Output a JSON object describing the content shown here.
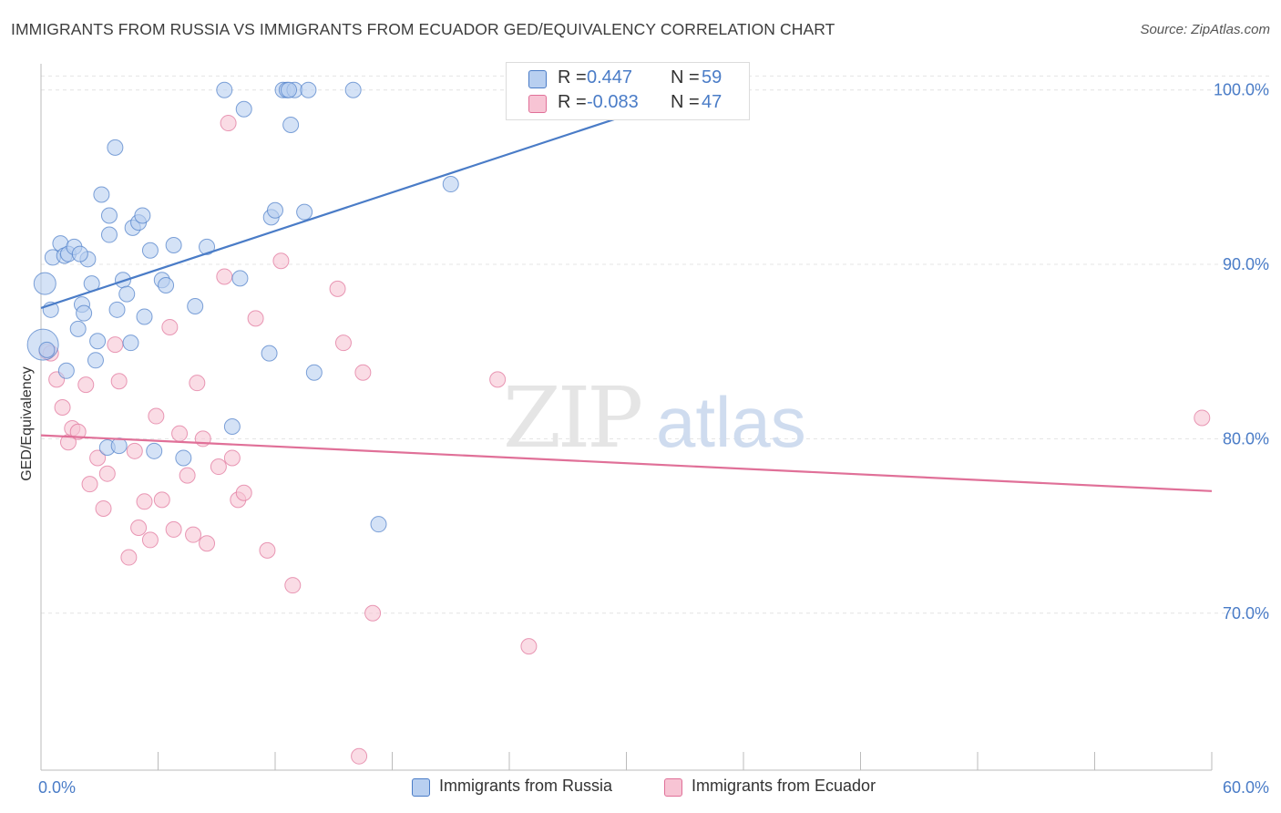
{
  "title": "IMMIGRANTS FROM RUSSIA VS IMMIGRANTS FROM ECUADOR GED/EQUIVALENCY CORRELATION CHART",
  "source": "Source: ZipAtlas.com",
  "watermark": {
    "zip": "ZIP",
    "atlas": "atlas"
  },
  "colors": {
    "russia": "#4a7cc7",
    "russia_fill": "#b8cff0",
    "ecuador": "#e07098",
    "ecuador_fill": "#f7c4d4"
  },
  "legend": {
    "russia": {
      "r_label": "R =",
      "r_value": "0.447",
      "n_label": "N =",
      "n_value": "59"
    },
    "ecuador": {
      "r_label": "R =",
      "r_value": "-0.083",
      "n_label": "N =",
      "n_value": "47"
    }
  },
  "bottom_legend": {
    "russia": "Immigrants from Russia",
    "ecuador": "Immigrants from Ecuador"
  },
  "chart_data": {
    "type": "scatter",
    "title": "IMMIGRANTS FROM RUSSIA VS IMMIGRANTS FROM ECUADOR GED/EQUIVALENCY CORRELATION CHART",
    "xlabel": "",
    "ylabel": "GED/Equivalency",
    "xlim": [
      0,
      60
    ],
    "ylim": [
      61,
      101.5
    ],
    "x_tick_labels": [
      "0.0%",
      "60.0%"
    ],
    "y_ticks": [
      70,
      80,
      90,
      100
    ],
    "y_tick_labels": [
      "70.0%",
      "80.0%",
      "90.0%",
      "100.0%"
    ],
    "grid": true,
    "legend_position": "top-center",
    "series": [
      {
        "name": "Immigrants from Russia",
        "color": "#4a7cc7",
        "trend": {
          "x": [
            0,
            34.5
          ],
          "y": [
            87.5,
            100.2
          ]
        },
        "points": [
          [
            0.1,
            85.4
          ],
          [
            0.2,
            88.9
          ],
          [
            0.5,
            87.4
          ],
          [
            0.6,
            90.4
          ],
          [
            1.0,
            91.2
          ],
          [
            1.2,
            90.5
          ],
          [
            1.4,
            90.6
          ],
          [
            1.7,
            91.0
          ],
          [
            1.9,
            86.3
          ],
          [
            2.1,
            87.7
          ],
          [
            2.2,
            87.2
          ],
          [
            2.4,
            90.3
          ],
          [
            2.6,
            88.9
          ],
          [
            2.8,
            84.5
          ],
          [
            2.9,
            85.6
          ],
          [
            3.1,
            94.0
          ],
          [
            3.4,
            79.5
          ],
          [
            3.5,
            92.8
          ],
          [
            3.5,
            91.7
          ],
          [
            3.8,
            96.7
          ],
          [
            3.9,
            87.4
          ],
          [
            4.0,
            79.6
          ],
          [
            4.2,
            89.1
          ],
          [
            4.4,
            88.3
          ],
          [
            4.6,
            85.5
          ],
          [
            4.7,
            92.1
          ],
          [
            5.0,
            92.4
          ],
          [
            5.2,
            92.8
          ],
          [
            5.3,
            87.0
          ],
          [
            5.6,
            90.8
          ],
          [
            5.8,
            79.3
          ],
          [
            6.2,
            89.1
          ],
          [
            6.4,
            88.8
          ],
          [
            6.8,
            91.1
          ],
          [
            7.3,
            78.9
          ],
          [
            7.9,
            87.6
          ],
          [
            8.5,
            91.0
          ],
          [
            9.4,
            100.0
          ],
          [
            9.8,
            80.7
          ],
          [
            10.2,
            89.2
          ],
          [
            10.4,
            98.9
          ],
          [
            11.7,
            84.9
          ],
          [
            11.8,
            92.7
          ],
          [
            12.0,
            93.1
          ],
          [
            12.4,
            100.0
          ],
          [
            12.6,
            100.0
          ],
          [
            12.8,
            98.0
          ],
          [
            13.0,
            100.0
          ],
          [
            13.5,
            93.0
          ],
          [
            13.7,
            100.0
          ],
          [
            14.0,
            83.8
          ],
          [
            16.0,
            100.0
          ],
          [
            17.3,
            75.1
          ],
          [
            21.0,
            94.6
          ],
          [
            34.0,
            100.0
          ],
          [
            0.3,
            85.1
          ],
          [
            1.3,
            83.9
          ],
          [
            2.0,
            90.6
          ],
          [
            12.7,
            100.0
          ]
        ]
      },
      {
        "name": "Immigrants from Ecuador",
        "color": "#e07098",
        "trend": {
          "x": [
            0,
            60
          ],
          "y": [
            80.2,
            77.0
          ]
        },
        "points": [
          [
            0.3,
            85.0
          ],
          [
            0.8,
            83.4
          ],
          [
            1.1,
            81.8
          ],
          [
            1.4,
            79.8
          ],
          [
            1.6,
            80.6
          ],
          [
            1.9,
            80.4
          ],
          [
            2.3,
            83.1
          ],
          [
            2.5,
            77.4
          ],
          [
            2.9,
            78.9
          ],
          [
            3.2,
            76.0
          ],
          [
            3.4,
            78.0
          ],
          [
            3.8,
            85.4
          ],
          [
            4.0,
            83.3
          ],
          [
            4.5,
            73.2
          ],
          [
            4.8,
            79.3
          ],
          [
            5.0,
            74.9
          ],
          [
            5.3,
            76.4
          ],
          [
            5.6,
            74.2
          ],
          [
            5.9,
            81.3
          ],
          [
            6.2,
            76.5
          ],
          [
            6.6,
            86.4
          ],
          [
            6.8,
            74.8
          ],
          [
            7.1,
            80.3
          ],
          [
            7.5,
            77.9
          ],
          [
            7.8,
            74.5
          ],
          [
            8.0,
            83.2
          ],
          [
            8.3,
            80.0
          ],
          [
            8.5,
            74.0
          ],
          [
            9.1,
            78.4
          ],
          [
            9.4,
            89.3
          ],
          [
            9.6,
            98.1
          ],
          [
            9.8,
            78.9
          ],
          [
            10.1,
            76.5
          ],
          [
            10.4,
            76.9
          ],
          [
            11.0,
            86.9
          ],
          [
            11.6,
            73.6
          ],
          [
            12.3,
            90.2
          ],
          [
            12.9,
            71.6
          ],
          [
            15.2,
            88.6
          ],
          [
            15.5,
            85.5
          ],
          [
            16.3,
            61.8
          ],
          [
            16.5,
            83.8
          ],
          [
            17.0,
            70.0
          ],
          [
            23.4,
            83.4
          ],
          [
            25.0,
            68.1
          ],
          [
            59.5,
            81.2
          ],
          [
            0.5,
            84.9
          ]
        ]
      }
    ]
  }
}
